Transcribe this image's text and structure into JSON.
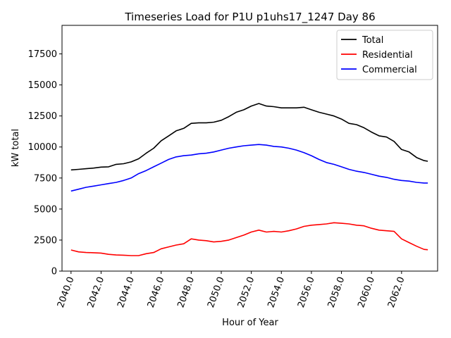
{
  "chart_data": {
    "type": "line",
    "title": "Timeseries Load for P1U p1uhs17_1247  Day 86",
    "xlabel": "Hour of Year",
    "ylabel": "kW total",
    "xlim": [
      2039.4,
      2064.4
    ],
    "ylim": [
      0,
      19800
    ],
    "x_ticks": [
      2040,
      2042,
      2044,
      2046,
      2048,
      2050,
      2052,
      2054,
      2056,
      2058,
      2060,
      2062
    ],
    "x_tick_labels": [
      "2040.0",
      "2042.0",
      "2044.0",
      "2046.0",
      "2048.0",
      "2050.0",
      "2052.0",
      "2054.0",
      "2056.0",
      "2058.0",
      "2060.0",
      "2062.0"
    ],
    "y_ticks": [
      0,
      2500,
      5000,
      7500,
      10000,
      12500,
      15000,
      17500
    ],
    "y_tick_labels": [
      "0",
      "2500",
      "5000",
      "7500",
      "10000",
      "12500",
      "15000",
      "17500"
    ],
    "grid": false,
    "legend_position": "top-right",
    "series": [
      {
        "name": "Total",
        "color": "#000000",
        "x": [
          2040.0,
          2040.5,
          2041.0,
          2041.5,
          2042.0,
          2042.5,
          2043.0,
          2043.5,
          2044.0,
          2044.5,
          2045.0,
          2045.5,
          2046.0,
          2046.5,
          2047.0,
          2047.5,
          2048.0,
          2048.5,
          2049.0,
          2049.5,
          2050.0,
          2050.5,
          2051.0,
          2051.5,
          2052.0,
          2052.5,
          2053.0,
          2053.5,
          2054.0,
          2054.5,
          2055.0,
          2055.5,
          2056.0,
          2056.5,
          2057.0,
          2057.5,
          2058.0,
          2058.5,
          2059.0,
          2059.5,
          2060.0,
          2060.5,
          2061.0,
          2061.5,
          2062.0,
          2062.5,
          2063.0,
          2063.5,
          2063.75
        ],
        "values": [
          8150,
          8200,
          8250,
          8300,
          8380,
          8400,
          8600,
          8650,
          8800,
          9050,
          9500,
          9900,
          10500,
          10900,
          11300,
          11500,
          11900,
          11950,
          11950,
          12000,
          12150,
          12450,
          12800,
          13000,
          13300,
          13500,
          13300,
          13250,
          13150,
          13150,
          13150,
          13200,
          13000,
          12800,
          12650,
          12500,
          12250,
          11900,
          11800,
          11550,
          11200,
          10900,
          10800,
          10450,
          9800,
          9600,
          9150,
          8900,
          8850
        ]
      },
      {
        "name": "Residential",
        "color": "#ff0000",
        "x": [
          2040.0,
          2040.5,
          2041.0,
          2041.5,
          2042.0,
          2042.5,
          2043.0,
          2043.5,
          2044.0,
          2044.5,
          2045.0,
          2045.5,
          2046.0,
          2046.5,
          2047.0,
          2047.5,
          2048.0,
          2048.5,
          2049.0,
          2049.5,
          2050.0,
          2050.5,
          2051.0,
          2051.5,
          2052.0,
          2052.5,
          2053.0,
          2053.5,
          2054.0,
          2054.5,
          2055.0,
          2055.5,
          2056.0,
          2056.5,
          2057.0,
          2057.5,
          2058.0,
          2058.5,
          2059.0,
          2059.5,
          2060.0,
          2060.5,
          2061.0,
          2061.5,
          2062.0,
          2062.5,
          2063.0,
          2063.5,
          2063.75
        ],
        "values": [
          1700,
          1550,
          1500,
          1480,
          1450,
          1350,
          1300,
          1280,
          1250,
          1250,
          1400,
          1500,
          1800,
          1950,
          2100,
          2200,
          2600,
          2500,
          2450,
          2350,
          2400,
          2500,
          2700,
          2900,
          3150,
          3300,
          3150,
          3200,
          3150,
          3250,
          3400,
          3600,
          3700,
          3750,
          3800,
          3900,
          3850,
          3800,
          3700,
          3650,
          3450,
          3300,
          3250,
          3200,
          2600,
          2300,
          2000,
          1750,
          1720
        ]
      },
      {
        "name": "Commercial",
        "color": "#0000ff",
        "x": [
          2040.0,
          2040.5,
          2041.0,
          2041.5,
          2042.0,
          2042.5,
          2043.0,
          2043.5,
          2044.0,
          2044.5,
          2045.0,
          2045.5,
          2046.0,
          2046.5,
          2047.0,
          2047.5,
          2048.0,
          2048.5,
          2049.0,
          2049.5,
          2050.0,
          2050.5,
          2051.0,
          2051.5,
          2052.0,
          2052.5,
          2053.0,
          2053.5,
          2054.0,
          2054.5,
          2055.0,
          2055.5,
          2056.0,
          2056.5,
          2057.0,
          2057.5,
          2058.0,
          2058.5,
          2059.0,
          2059.5,
          2060.0,
          2060.5,
          2061.0,
          2061.5,
          2062.0,
          2062.5,
          2063.0,
          2063.5,
          2063.75
        ],
        "values": [
          6450,
          6600,
          6750,
          6850,
          6950,
          7050,
          7150,
          7300,
          7500,
          7850,
          8100,
          8400,
          8700,
          9000,
          9200,
          9300,
          9350,
          9450,
          9500,
          9600,
          9750,
          9900,
          10000,
          10100,
          10150,
          10200,
          10150,
          10050,
          10000,
          9900,
          9750,
          9550,
          9300,
          9000,
          8750,
          8600,
          8400,
          8200,
          8050,
          7950,
          7800,
          7650,
          7550,
          7400,
          7300,
          7250,
          7150,
          7100,
          7100
        ]
      }
    ]
  }
}
